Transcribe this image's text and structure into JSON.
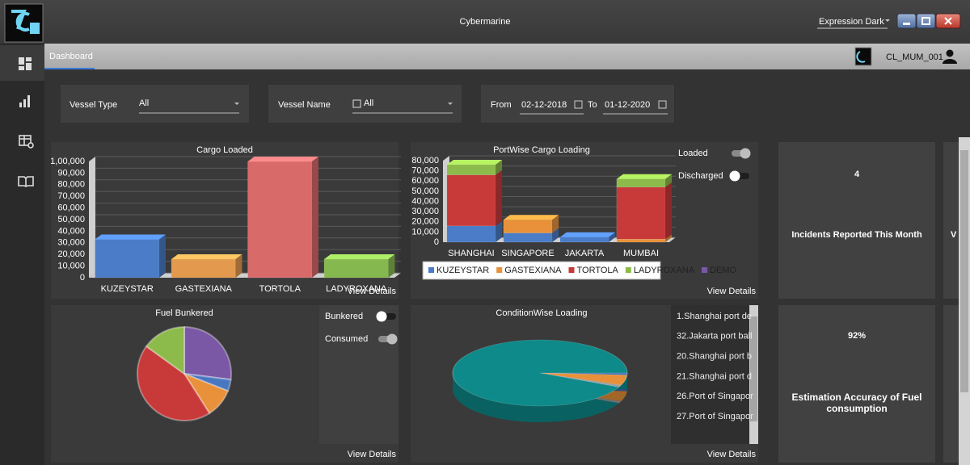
{
  "app": {
    "title": "Cybermarine",
    "theme": "Expression Dark"
  },
  "nav": {
    "tab": "Dashboard",
    "user": "CL_MUM_001"
  },
  "filters": {
    "vessel_type": {
      "label": "Vessel Type",
      "value": "All"
    },
    "vessel_name": {
      "label": "Vessel Name",
      "value": "All"
    },
    "date_range": {
      "from_label": "From",
      "from": "02-12-2018",
      "to_label": "To",
      "to": "01-12-2020"
    }
  },
  "chart_data": [
    {
      "type": "bar",
      "title": "Cargo Loaded",
      "categories": [
        "KUZEYSTAR",
        "GASTEXIANA",
        "TORTOLA",
        "LADYROXANA"
      ],
      "values": [
        33000,
        16000,
        100000,
        16000
      ],
      "colors": [
        "#4a7cc7",
        "#e39a4e",
        "#d96a6a",
        "#86b850"
      ],
      "ylim": [
        0,
        100000
      ],
      "yticks": [
        0,
        {
          "value": 10000,
          "label": "10,000"
        },
        {
          "value": 20000,
          "label": "20,000"
        },
        {
          "value": 30000,
          "label": "30,000"
        },
        {
          "value": 40000,
          "label": "40,000"
        },
        {
          "value": 50000,
          "label": "50,000"
        },
        {
          "value": 60000,
          "label": "60,000"
        },
        {
          "value": 70000,
          "label": "70,000"
        },
        {
          "value": 80000,
          "label": "80,000"
        },
        {
          "value": 90000,
          "label": "90,000"
        },
        {
          "value": 100000,
          "label": "1,00,000"
        }
      ],
      "grid": true
    },
    {
      "type": "stacked_bar",
      "title": "PortWise Cargo Loading",
      "categories": [
        "SHANGHAI",
        "SINGAPORE",
        "JAKARTA",
        "MUMBAI"
      ],
      "series": [
        {
          "name": "KUZEYSTAR",
          "color": "#4a7cc7",
          "values": [
            16000,
            9000,
            5000,
            0
          ]
        },
        {
          "name": "GASTEXIANA",
          "color": "#e8913a",
          "values": [
            0,
            13000,
            0,
            3000
          ]
        },
        {
          "name": "TORTOLA",
          "color": "#c8393a",
          "values": [
            50000,
            0,
            0,
            51000
          ]
        },
        {
          "name": "LADYROXANA",
          "color": "#8dbb4b",
          "values": [
            10000,
            0,
            0,
            8000
          ]
        },
        {
          "name": "DEMO",
          "color": "#7b58a6",
          "values": [
            0,
            0,
            0,
            0
          ]
        }
      ],
      "ylim": [
        0,
        80000
      ],
      "yticks": [
        0,
        {
          "value": 10000,
          "label": "10,000"
        },
        {
          "value": 20000,
          "label": "20,000"
        },
        {
          "value": 30000,
          "label": "30,000"
        },
        {
          "value": 40000,
          "label": "40,000"
        },
        {
          "value": 50000,
          "label": "50,000"
        },
        {
          "value": 60000,
          "label": "60,000"
        },
        {
          "value": 70000,
          "label": "70,000"
        },
        {
          "value": 80000,
          "label": "80,000"
        }
      ],
      "grid": true,
      "legend": "bottom"
    },
    {
      "type": "pie",
      "title": "Fuel Bunkered",
      "values": [
        27,
        4,
        10,
        44,
        15
      ],
      "colors": [
        "#7b58a6",
        "#4a78c0",
        "#e8913a",
        "#c8393a",
        "#8dbb4b"
      ]
    },
    {
      "type": "pie3d",
      "title": "ConditionWise Loading",
      "values": [
        1,
        5,
        1,
        93
      ],
      "colors": [
        "#3f6fb5",
        "#e8913a",
        "#9aa0a6",
        "#0f8a8a"
      ]
    }
  ],
  "toggles": [
    {
      "label": "Loaded",
      "on": true
    },
    {
      "label": "Discharged",
      "on": false
    },
    {
      "label": "Bunkered",
      "on": false
    },
    {
      "label": "Consumed",
      "on": true
    }
  ],
  "view_details": "View Details",
  "condition_list": [
    "1.Shanghai port de",
    "32.Jakarta port ball",
    "20.Shanghai port b",
    "21.Shanghai port d",
    "26.Port of Singapor",
    "27.Port of Singapor"
  ],
  "kpis": [
    {
      "value": 4,
      "label": "Incidents Reported This Month"
    },
    {
      "value": 92,
      "value_label": "92%",
      "label": "Estimation Accuracy of Fuel consumption"
    },
    {
      "label": "V"
    }
  ]
}
